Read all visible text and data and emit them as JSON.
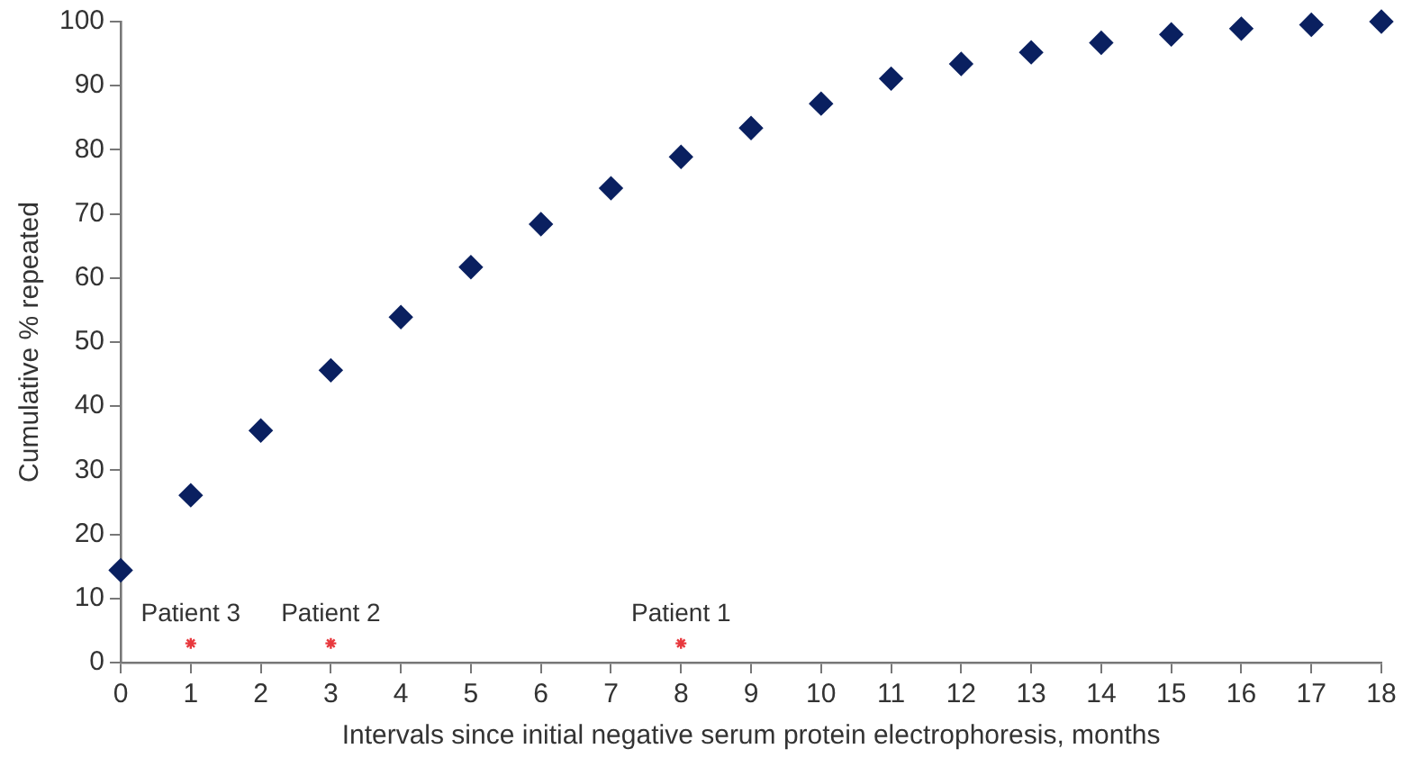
{
  "chart_data": {
    "type": "scatter",
    "xlabel": "Intervals since initial negative serum protein electrophoresis, months",
    "ylabel": "Cumulative % repeated",
    "x": [
      0,
      1,
      2,
      3,
      4,
      5,
      6,
      7,
      8,
      9,
      10,
      11,
      12,
      13,
      14,
      15,
      16,
      17,
      18
    ],
    "series": [
      {
        "color": "#0a2060",
        "marker": "diamond",
        "values": [
          14.4,
          26.1,
          36.2,
          45.6,
          53.9,
          61.7,
          68.4,
          74.0,
          78.9,
          83.4,
          87.2,
          91.1,
          93.4,
          95.2,
          96.7,
          98.0,
          98.9,
          99.5,
          100
        ]
      },
      {
        "color": "#e8383d",
        "marker": "cross",
        "x": [
          1,
          3,
          8
        ],
        "values": [
          3,
          3,
          3
        ]
      }
    ],
    "annotations": [
      {
        "text": "Patient 3",
        "x": 1,
        "y": 3
      },
      {
        "text": "Patient 2",
        "x": 3,
        "y": 3
      },
      {
        "text": "Patient 1",
        "x": 8,
        "y": 3
      }
    ],
    "xlim": [
      0,
      18
    ],
    "xticks": [
      0,
      1,
      2,
      3,
      4,
      5,
      6,
      7,
      8,
      9,
      10,
      11,
      12,
      13,
      14,
      15,
      16,
      17,
      18
    ],
    "ylim": [
      0,
      100
    ],
    "yticks": [
      0,
      10,
      20,
      30,
      40,
      50,
      60,
      70,
      80,
      90,
      100
    ],
    "grid": false,
    "legend": false
  }
}
